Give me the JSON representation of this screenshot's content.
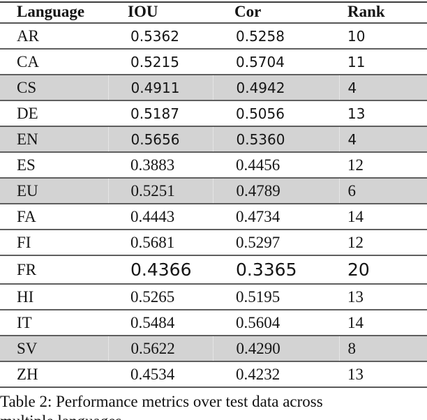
{
  "table": {
    "columns": [
      "Language",
      "IOU",
      "Cor",
      "Rank"
    ],
    "rows": [
      {
        "lang": "AR",
        "iou": "0.5362",
        "cor": "0.5258",
        "rank": "10",
        "shaded": false,
        "variant": "sans"
      },
      {
        "lang": "CA",
        "iou": "0.5215",
        "cor": "0.5704",
        "rank": "11",
        "shaded": false,
        "variant": "sans"
      },
      {
        "lang": "CS",
        "iou": "0.4911",
        "cor": "0.4942",
        "rank": "4",
        "shaded": true,
        "variant": "sans"
      },
      {
        "lang": "DE",
        "iou": "0.5187",
        "cor": "0.5056",
        "rank": "13",
        "shaded": false,
        "variant": "sans"
      },
      {
        "lang": "EN",
        "iou": "0.5656",
        "cor": "0.5360",
        "rank": "4",
        "shaded": true,
        "variant": "sans"
      },
      {
        "lang": "ES",
        "iou": "0.3883",
        "cor": "0.4456",
        "rank": "12",
        "shaded": false,
        "variant": "serif"
      },
      {
        "lang": "EU",
        "iou": "0.5251",
        "cor": "0.4789",
        "rank": "6",
        "shaded": true,
        "variant": "serif"
      },
      {
        "lang": "FA",
        "iou": "0.4443",
        "cor": "0.4734",
        "rank": "14",
        "shaded": false,
        "variant": "serif"
      },
      {
        "lang": "FI",
        "iou": "0.5681",
        "cor": "0.5297",
        "rank": "12",
        "shaded": false,
        "variant": "serif"
      },
      {
        "lang": "FR",
        "iou": "0.4366",
        "cor": "0.3365",
        "rank": "20",
        "shaded": false,
        "variant": "sans-large"
      },
      {
        "lang": "HI",
        "iou": "0.5265",
        "cor": "0.5195",
        "rank": "13",
        "shaded": false,
        "variant": "serif"
      },
      {
        "lang": "IT",
        "iou": "0.5484",
        "cor": "0.5604",
        "rank": "14",
        "shaded": false,
        "variant": "serif"
      },
      {
        "lang": "SV",
        "iou": "0.5622",
        "cor": "0.4290",
        "rank": "8",
        "shaded": true,
        "variant": "serif"
      },
      {
        "lang": "ZH",
        "iou": "0.4534",
        "cor": "0.4232",
        "rank": "13",
        "shaded": false,
        "variant": "serif"
      }
    ]
  },
  "colors": {
    "row_shading": "#d3d3d3",
    "rule_color": "#5f5f5f",
    "text_color": "#151515"
  },
  "caption": {
    "line1": "Table 2: Performance metrics over test data across",
    "line2": "multiple languages"
  }
}
